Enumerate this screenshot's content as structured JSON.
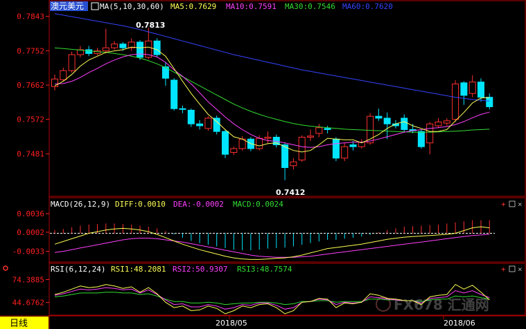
{
  "main": {
    "symbol": "澳元美元",
    "ma_label": "MA(5,10,30,60)",
    "ma5": "MA5:0.7629",
    "ma10": "MA10:0.7591",
    "ma30": "MA30:0.7546",
    "ma60": "MA60:0.7620",
    "y_ticks": [
      "0.7843",
      "0.7752",
      "0.7662",
      "0.7572",
      "0.7481"
    ],
    "high_label": "0.7813",
    "low_label": "0.7412"
  },
  "macd": {
    "label": "MACD(26,12,9)",
    "diff": "DIFF:0.0010",
    "dea": "DEA:-0.0002",
    "macd": "MACD:0.0024",
    "y_ticks": [
      "0.0036",
      "0.0002",
      "-0.0033"
    ]
  },
  "rsi": {
    "label": "RSI(6,12,24)",
    "rsi1": "RSI1:48.2081",
    "rsi2": "RSI2:50.9307",
    "rsi3": "RSI3:48.7574",
    "y_ticks": [
      "74.3885",
      "44.6762"
    ]
  },
  "footer": {
    "period": "日线",
    "dates": [
      "2018/05",
      "2018/06"
    ]
  },
  "watermark": "FX678 汇通网",
  "colors": {
    "up": "#ff3030",
    "down": "#00e5ff",
    "ma5": "#ffff55",
    "ma10": "#ff40ff",
    "ma30": "#33dd33",
    "ma60": "#3344ff",
    "axis": "#ff2020",
    "text": "#ffffff"
  },
  "chart_data": [
    {
      "type": "candlestick",
      "title": "澳元美元",
      "ylim": [
        0.7395,
        0.7853
      ],
      "y_ticks": [
        0.7843,
        0.7752,
        0.7662,
        0.7572,
        0.7481
      ],
      "candles": [
        [
          0.7658,
          0.7678,
          0.7648,
          0.769
        ],
        [
          0.7676,
          0.77,
          0.7672,
          0.7708
        ],
        [
          0.77,
          0.7742,
          0.7695,
          0.775
        ],
        [
          0.7742,
          0.7755,
          0.7735,
          0.7765
        ],
        [
          0.7755,
          0.7745,
          0.7738,
          0.7765
        ],
        [
          0.7745,
          0.7752,
          0.774,
          0.776
        ],
        [
          0.7752,
          0.776,
          0.7745,
          0.781
        ],
        [
          0.776,
          0.777,
          0.7755,
          0.7778
        ],
        [
          0.777,
          0.776,
          0.7752,
          0.7775
        ],
        [
          0.776,
          0.7775,
          0.7752,
          0.7785
        ],
        [
          0.7775,
          0.7735,
          0.7728,
          0.778
        ],
        [
          0.7735,
          0.7778,
          0.773,
          0.7813
        ],
        [
          0.7778,
          0.7742,
          0.7735,
          0.7785
        ],
        [
          0.771,
          0.768,
          0.766,
          0.7722
        ],
        [
          0.7675,
          0.76,
          0.7595,
          0.768
        ],
        [
          0.76,
          0.7598,
          0.7588,
          0.7608
        ],
        [
          0.7596,
          0.756,
          0.7552,
          0.76
        ],
        [
          0.756,
          0.7555,
          0.7545,
          0.757
        ],
        [
          0.7548,
          0.7575,
          0.7542,
          0.758
        ],
        [
          0.7575,
          0.754,
          0.7532,
          0.7582
        ],
        [
          0.754,
          0.748,
          0.747,
          0.7545
        ],
        [
          0.7485,
          0.7495,
          0.7478,
          0.75
        ],
        [
          0.7495,
          0.752,
          0.749,
          0.7528
        ],
        [
          0.752,
          0.7495,
          0.7488,
          0.7525
        ],
        [
          0.7495,
          0.7522,
          0.749,
          0.753
        ],
        [
          0.7522,
          0.7525,
          0.751,
          0.754
        ],
        [
          0.7525,
          0.7505,
          0.7498,
          0.7532
        ],
        [
          0.7505,
          0.7445,
          0.7412,
          0.751
        ],
        [
          0.745,
          0.746,
          0.744,
          0.747
        ],
        [
          0.7465,
          0.7525,
          0.746,
          0.753
        ],
        [
          0.7525,
          0.7528,
          0.7515,
          0.7545
        ],
        [
          0.7535,
          0.755,
          0.7525,
          0.756
        ],
        [
          0.7548,
          0.7545,
          0.7535,
          0.7555
        ],
        [
          0.752,
          0.747,
          0.7462,
          0.7525
        ],
        [
          0.747,
          0.75,
          0.7462,
          0.751
        ],
        [
          0.7505,
          0.75,
          0.749,
          0.7515
        ],
        [
          0.75,
          0.7512,
          0.7495,
          0.752
        ],
        [
          0.751,
          0.758,
          0.7505,
          0.7588
        ],
        [
          0.758,
          0.7575,
          0.7568,
          0.76
        ],
        [
          0.7575,
          0.756,
          0.752,
          0.759
        ],
        [
          0.756,
          0.7555,
          0.7548,
          0.757
        ],
        [
          0.7575,
          0.7545,
          0.7538,
          0.7585
        ],
        [
          0.7545,
          0.7542,
          0.7535,
          0.756
        ],
        [
          0.754,
          0.75,
          0.7495,
          0.7545
        ],
        [
          0.751,
          0.756,
          0.748,
          0.7565
        ],
        [
          0.7555,
          0.7565,
          0.755,
          0.7575
        ],
        [
          0.7562,
          0.7568,
          0.7555,
          0.7575
        ],
        [
          0.7572,
          0.7665,
          0.7565,
          0.7675
        ],
        [
          0.7668,
          0.7635,
          0.761,
          0.7672
        ],
        [
          0.764,
          0.767,
          0.763,
          0.7688
        ],
        [
          0.767,
          0.763,
          0.7618,
          0.768
        ],
        [
          0.763,
          0.7605,
          0.7598,
          0.764
        ]
      ],
      "ma5": [
        0.766,
        0.7672,
        0.769,
        0.7712,
        0.7728,
        0.7738,
        0.7748,
        0.7752,
        0.7755,
        0.7762,
        0.776,
        0.7762,
        0.7755,
        0.7738,
        0.7705,
        0.7672,
        0.764,
        0.7612,
        0.7585,
        0.7566,
        0.7545,
        0.7526,
        0.752,
        0.7508,
        0.7502,
        0.7508,
        0.751,
        0.75,
        0.749,
        0.7486,
        0.749,
        0.7505,
        0.7522,
        0.752,
        0.7518,
        0.7518,
        0.751,
        0.752,
        0.7532,
        0.7548,
        0.756,
        0.7566,
        0.7555,
        0.7548,
        0.754,
        0.754,
        0.7545,
        0.7568,
        0.759,
        0.7615,
        0.7628,
        0.7629
      ],
      "ma10": [
        0.7665,
        0.7666,
        0.7672,
        0.7682,
        0.7695,
        0.7706,
        0.7718,
        0.7728,
        0.7736,
        0.7742,
        0.7744,
        0.7742,
        0.7736,
        0.7722,
        0.7702,
        0.7685,
        0.7665,
        0.7642,
        0.7618,
        0.7598,
        0.7578,
        0.756,
        0.7545,
        0.7532,
        0.7522,
        0.7516,
        0.7514,
        0.751,
        0.7505,
        0.75,
        0.7498,
        0.75,
        0.7505,
        0.7508,
        0.751,
        0.7512,
        0.7512,
        0.7515,
        0.752,
        0.7526,
        0.7532,
        0.7538,
        0.7542,
        0.7545,
        0.7548,
        0.755,
        0.7553,
        0.7558,
        0.7566,
        0.7576,
        0.7585,
        0.7591
      ],
      "ma30": [
        0.776,
        0.7758,
        0.7756,
        0.7754,
        0.7752,
        0.775,
        0.7748,
        0.7745,
        0.7742,
        0.7738,
        0.7733,
        0.7726,
        0.7718,
        0.7708,
        0.7696,
        0.7684,
        0.7672,
        0.766,
        0.7648,
        0.7636,
        0.7624,
        0.7612,
        0.7602,
        0.7593,
        0.7585,
        0.7578,
        0.7572,
        0.7566,
        0.7561,
        0.7557,
        0.7554,
        0.7552,
        0.755,
        0.7548,
        0.7546,
        0.7545,
        0.7544,
        0.7543,
        0.7542,
        0.7541,
        0.754,
        0.7539,
        0.7538,
        0.7538,
        0.7538,
        0.7539,
        0.754,
        0.7541,
        0.7542,
        0.7544,
        0.7545,
        0.7546
      ],
      "ma60": [
        0.785,
        0.7846,
        0.7842,
        0.7838,
        0.7834,
        0.783,
        0.7826,
        0.7822,
        0.7818,
        0.7813,
        0.7808,
        0.7802,
        0.7796,
        0.779,
        0.7784,
        0.7778,
        0.7772,
        0.7766,
        0.776,
        0.7754,
        0.7748,
        0.7742,
        0.7737,
        0.7732,
        0.7727,
        0.7722,
        0.7717,
        0.7712,
        0.7707,
        0.7702,
        0.7698,
        0.7694,
        0.769,
        0.7686,
        0.7682,
        0.7678,
        0.7674,
        0.767,
        0.7666,
        0.7662,
        0.7658,
        0.7654,
        0.765,
        0.7646,
        0.7642,
        0.7638,
        0.7634,
        0.763,
        0.7627,
        0.7624,
        0.7622,
        0.762
      ],
      "annotations": [
        {
          "label": "0.7813",
          "value": 0.7813
        },
        {
          "label": "0.7412",
          "value": 0.7412
        }
      ]
    },
    {
      "type": "bar",
      "title": "MACD(26,12,9)",
      "ylim": [
        -0.005,
        0.0045
      ],
      "y_ticks": [
        0.0036,
        0.0002,
        -0.0033
      ],
      "macd": [
        0.0006,
        0.0008,
        0.0011,
        0.0014,
        0.0016,
        0.0017,
        0.0018,
        0.0018,
        0.0017,
        0.0016,
        0.0014,
        0.0012,
        0.0009,
        0.0004,
        -0.0002,
        -0.0008,
        -0.0014,
        -0.0018,
        -0.0021,
        -0.0024,
        -0.0027,
        -0.003,
        -0.0031,
        -0.0031,
        -0.003,
        -0.0028,
        -0.0027,
        -0.0026,
        -0.0024,
        -0.0021,
        -0.0018,
        -0.0015,
        -0.0012,
        -0.0012,
        -0.001,
        -0.0008,
        -0.0006,
        -0.0003,
        0.0002,
        0.0006,
        0.0009,
        0.0012,
        0.0013,
        0.0014,
        0.0015,
        0.0016,
        0.0018,
        0.002,
        0.0022,
        0.0024,
        0.0024,
        0.0024
      ],
      "diff": [
        -0.002,
        -0.0015,
        -0.001,
        -0.0005,
        0.0,
        0.0003,
        0.0006,
        0.0008,
        0.0009,
        0.0008,
        0.0006,
        0.0003,
        -0.0002,
        -0.0008,
        -0.0014,
        -0.002,
        -0.0025,
        -0.003,
        -0.0034,
        -0.0038,
        -0.0042,
        -0.0045,
        -0.0047,
        -0.0048,
        -0.0048,
        -0.0047,
        -0.0046,
        -0.0045,
        -0.0043,
        -0.004,
        -0.0036,
        -0.0032,
        -0.0028,
        -0.0026,
        -0.0024,
        -0.0022,
        -0.002,
        -0.0017,
        -0.0014,
        -0.0011,
        -0.0009,
        -0.0007,
        -0.0006,
        -0.0005,
        -0.0004,
        -0.0003,
        -0.0002,
        0.0,
        0.0005,
        0.001,
        0.0012,
        0.001
      ],
      "dea": [
        -0.0035,
        -0.0033,
        -0.003,
        -0.0027,
        -0.0024,
        -0.0021,
        -0.0018,
        -0.0015,
        -0.0012,
        -0.001,
        -0.0009,
        -0.0009,
        -0.001,
        -0.0012,
        -0.0014,
        -0.0016,
        -0.0019,
        -0.0022,
        -0.0025,
        -0.0028,
        -0.0031,
        -0.0034,
        -0.0037,
        -0.004,
        -0.0042,
        -0.0043,
        -0.0044,
        -0.0044,
        -0.0044,
        -0.0043,
        -0.0042,
        -0.004,
        -0.0038,
        -0.0036,
        -0.0034,
        -0.0032,
        -0.003,
        -0.0028,
        -0.0026,
        -0.0024,
        -0.0022,
        -0.002,
        -0.0018,
        -0.0016,
        -0.0014,
        -0.0012,
        -0.001,
        -0.0008,
        -0.0006,
        -0.0004,
        -0.0003,
        -0.0002
      ]
    },
    {
      "type": "line",
      "title": "RSI(6,12,24)",
      "ylim": [
        30,
        82
      ],
      "y_ticks": [
        74.3885,
        44.6762
      ],
      "series": [
        {
          "name": "RSI1",
          "values": [
            55,
            58,
            62,
            66,
            64,
            65,
            68,
            66,
            63,
            65,
            58,
            64,
            56,
            45,
            38,
            40,
            34,
            35,
            40,
            37,
            30,
            34,
            40,
            38,
            42,
            43,
            38,
            30,
            34,
            45,
            46,
            50,
            49,
            38,
            44,
            43,
            45,
            56,
            54,
            50,
            49,
            47,
            47,
            42,
            52,
            54,
            55,
            68,
            62,
            67,
            58,
            48
          ]
        },
        {
          "name": "RSI2",
          "values": [
            54,
            56,
            59,
            62,
            61,
            62,
            64,
            63,
            61,
            62,
            57,
            61,
            55,
            48,
            42,
            43,
            39,
            39,
            42,
            40,
            36,
            38,
            42,
            41,
            44,
            44,
            41,
            36,
            38,
            45,
            46,
            49,
            48,
            42,
            45,
            44,
            45,
            52,
            51,
            49,
            48,
            47,
            47,
            44,
            50,
            51,
            52,
            60,
            57,
            60,
            55,
            51
          ]
        },
        {
          "name": "RSI3",
          "values": [
            52,
            53,
            55,
            57,
            57,
            57,
            58,
            58,
            57,
            57,
            55,
            56,
            53,
            49,
            46,
            46,
            44,
            44,
            45,
            44,
            42,
            43,
            44,
            44,
            45,
            45,
            44,
            42,
            43,
            46,
            46,
            47,
            47,
            45,
            46,
            46,
            46,
            49,
            49,
            48,
            48,
            47,
            47,
            46,
            48,
            49,
            49,
            53,
            52,
            53,
            51,
            49
          ]
        }
      ]
    }
  ]
}
